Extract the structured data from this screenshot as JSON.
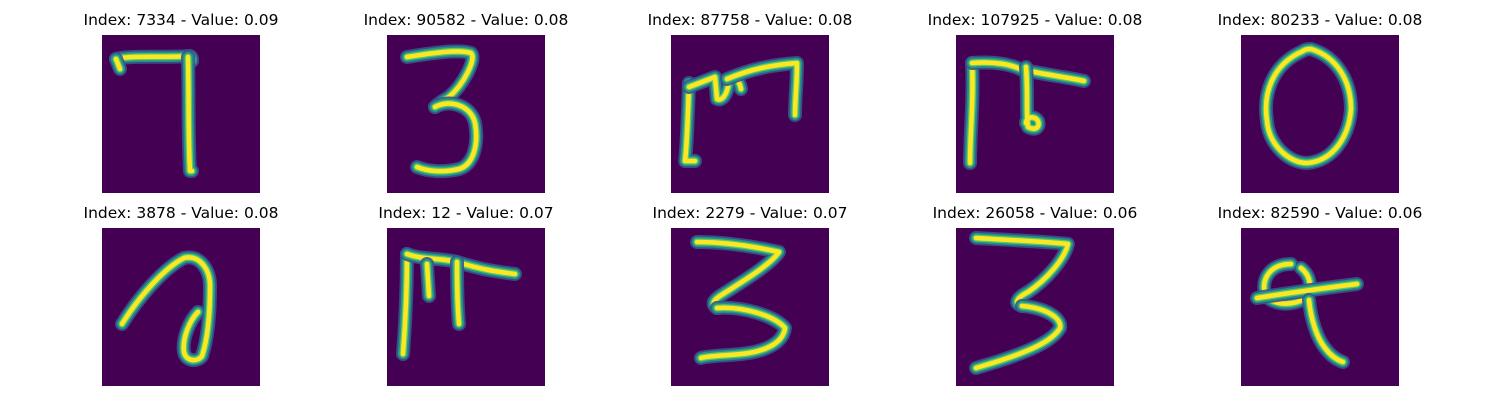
{
  "colors": {
    "background": "#440154",
    "mid": "#21918c",
    "high": "#fde725"
  },
  "chart_data": {
    "type": "image-grid",
    "rows": 2,
    "cols": 5,
    "colormap": "viridis",
    "panels": [
      {
        "title": "Index: 7334 - Value: 0.09",
        "index": 7334,
        "value": 0.09,
        "glyph": "7"
      },
      {
        "title": "Index: 90582 - Value: 0.08",
        "index": 90582,
        "value": 0.08,
        "glyph": "3"
      },
      {
        "title": "Index: 87758 - Value: 0.08",
        "index": 87758,
        "value": 0.08,
        "glyph": "m"
      },
      {
        "title": "Index: 107925 - Value: 0.08",
        "index": 107925,
        "value": 0.08,
        "glyph": "F"
      },
      {
        "title": "Index: 80233 - Value: 0.08",
        "index": 80233,
        "value": 0.08,
        "glyph": "0"
      },
      {
        "title": "Index: 3878 - Value: 0.08",
        "index": 3878,
        "value": 0.08,
        "glyph": "a"
      },
      {
        "title": "Index: 12 - Value: 0.07",
        "index": 12,
        "value": 0.07,
        "glyph": "m"
      },
      {
        "title": "Index: 2279 - Value: 0.07",
        "index": 2279,
        "value": 0.07,
        "glyph": "3"
      },
      {
        "title": "Index: 26058 - Value: 0.06",
        "index": 26058,
        "value": 0.06,
        "glyph": "3"
      },
      {
        "title": "Index: 82590 - Value: 0.06",
        "index": 82590,
        "value": 0.06,
        "glyph": "q"
      }
    ]
  }
}
